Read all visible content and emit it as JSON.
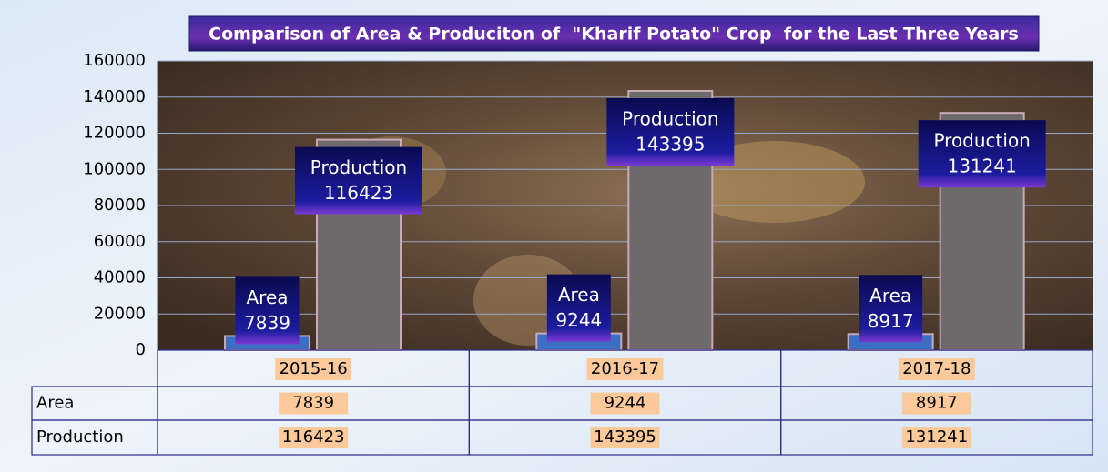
{
  "chart_data": {
    "type": "bar",
    "title": "Comparison of Area & Produciton of  \"Kharif Potato\" Crop  for the Last Three Years",
    "categories": [
      "2015-16",
      "2016-17",
      "2017-18"
    ],
    "series": [
      {
        "name": "Area",
        "color": "#3a6fc4",
        "values": [
          7839,
          9244,
          8917
        ]
      },
      {
        "name": "Production",
        "color": "#6e6a6c",
        "values": [
          116423,
          143395,
          131241
        ]
      }
    ],
    "ylim": [
      0,
      160000
    ],
    "yticks": [
      0,
      20000,
      40000,
      60000,
      80000,
      100000,
      120000,
      140000,
      160000
    ],
    "grid": true
  }
}
